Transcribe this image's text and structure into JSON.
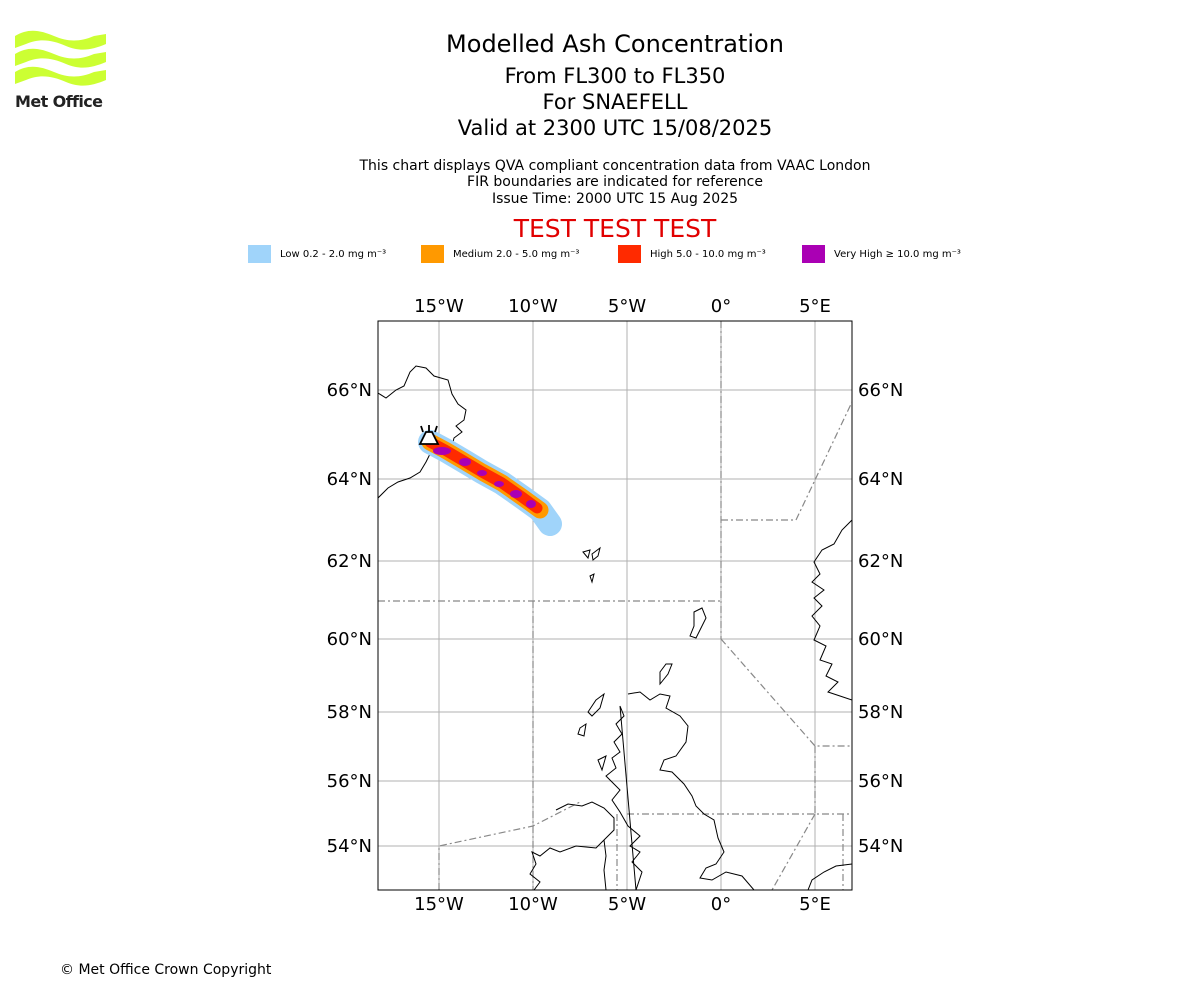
{
  "logo": {
    "text": "Met Office",
    "color": "#ccff33"
  },
  "title": {
    "line1": "Modelled Ash Concentration",
    "line2": "From FL300 to FL350",
    "line3": "For SNAEFELL",
    "line4": "Valid at 2300 UTC 15/08/2025"
  },
  "subtitle": {
    "line1": "This chart displays QVA compliant concentration data from VAAC London",
    "line2": "FIR boundaries are indicated for reference",
    "line3": "Issue Time: 2000 UTC 15 Aug 2025"
  },
  "test_banner": "TEST TEST TEST",
  "legend": [
    {
      "label": "Low 0.2 - 2.0 mg m⁻³",
      "color": "#a0d4fa"
    },
    {
      "label": "Medium 2.0 - 5.0 mg m⁻³",
      "color": "#ff9900"
    },
    {
      "label": "High 5.0 - 10.0 mg m⁻³",
      "color": "#ff2a00"
    },
    {
      "label": "Very High  ≥  10.0 mg m⁻³",
      "color": "#aa00b4"
    }
  ],
  "map": {
    "lon_labels": [
      "15°W",
      "10°W",
      "5°W",
      "0°",
      "5°E"
    ],
    "lat_labels": [
      "66°N",
      "64°N",
      "62°N",
      "60°N",
      "58°N",
      "56°N",
      "54°N"
    ],
    "volcano": "SNAEFELL"
  },
  "copyright": "© Met Office Crown Copyright"
}
